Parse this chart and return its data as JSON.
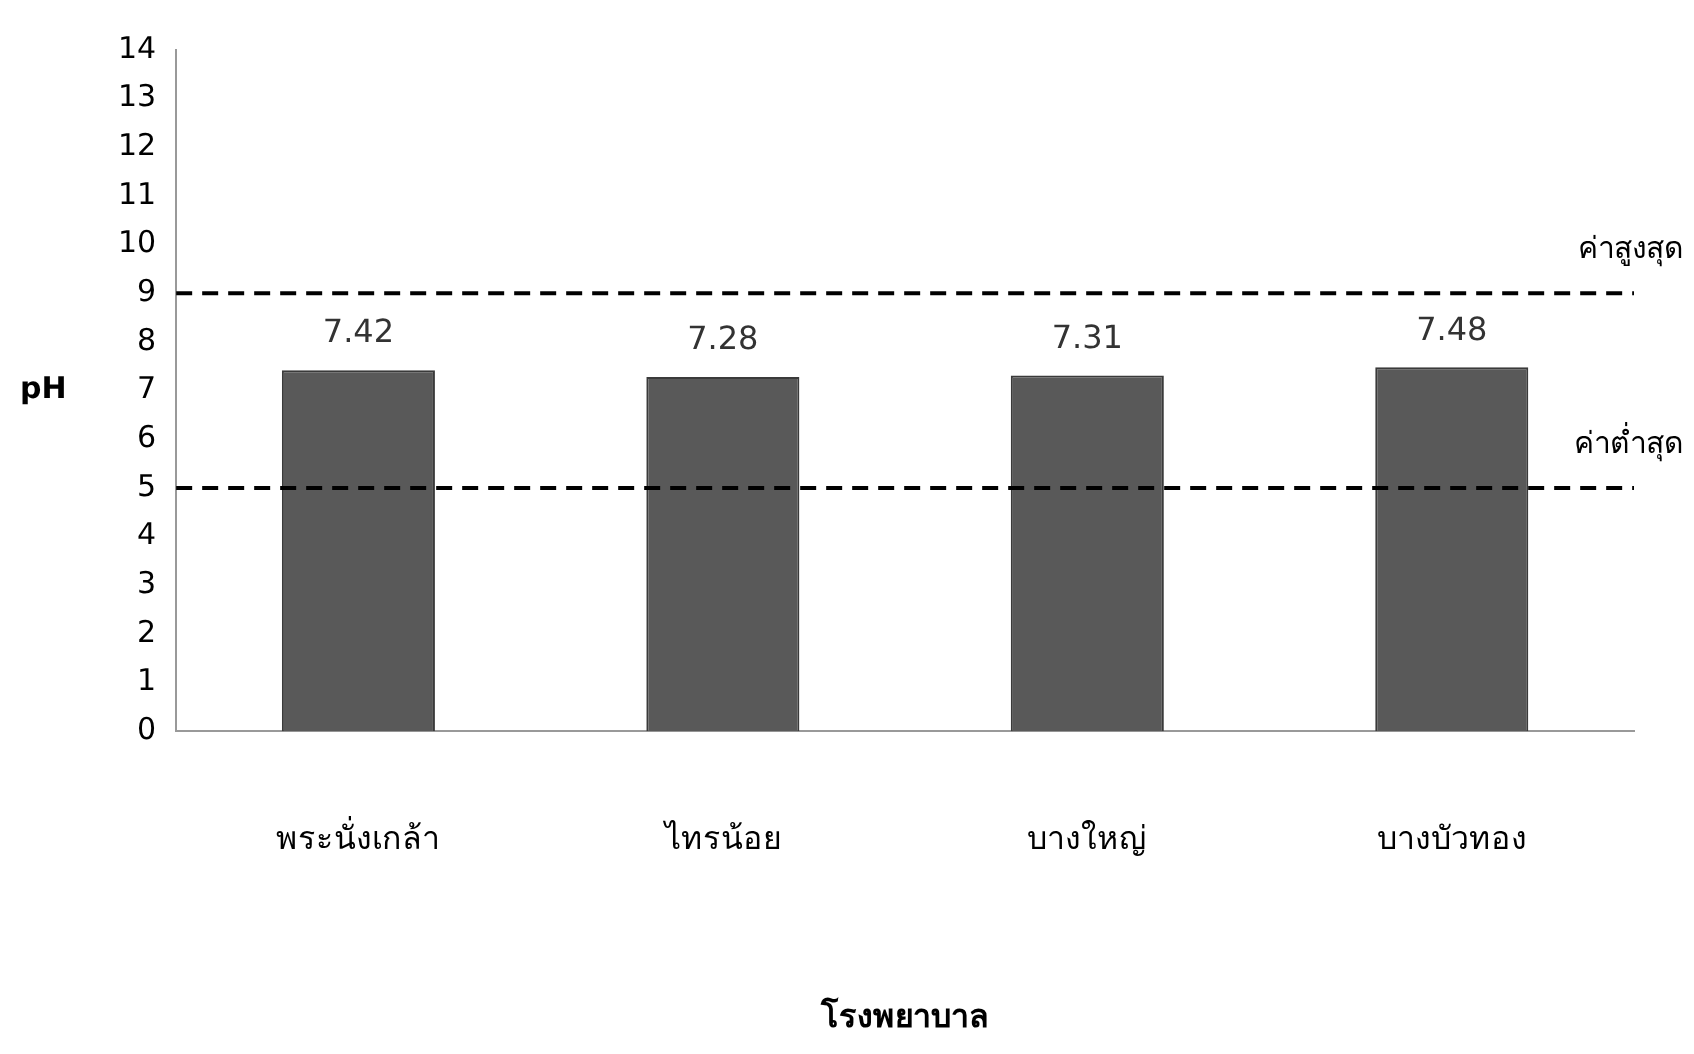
{
  "chart_data": {
    "type": "bar",
    "xlabel": "โรงพยาบาล",
    "ylabel": "pH",
    "categories": [
      "พระนั่งเกล้า",
      "ไทรน้อย",
      "บางใหญ่",
      "บางบัวทอง"
    ],
    "values": [
      7.42,
      7.28,
      7.31,
      7.48
    ],
    "color": "#595959",
    "data_labels": true,
    "ylim": [
      0,
      14
    ],
    "yticks": [
      0,
      1,
      2,
      3,
      4,
      5,
      6,
      7,
      8,
      9,
      10,
      11,
      12,
      13,
      14
    ],
    "grid": false,
    "legend": false,
    "ref_lines": [
      {
        "axis": "y",
        "value": 9,
        "label": "ค่าสูงสุด",
        "color": "#000000",
        "line_style": "dashed"
      },
      {
        "axis": "y",
        "value": 5,
        "label": "ค่าต่ำสุด",
        "color": "#000000",
        "line_style": "dashed"
      }
    ]
  }
}
